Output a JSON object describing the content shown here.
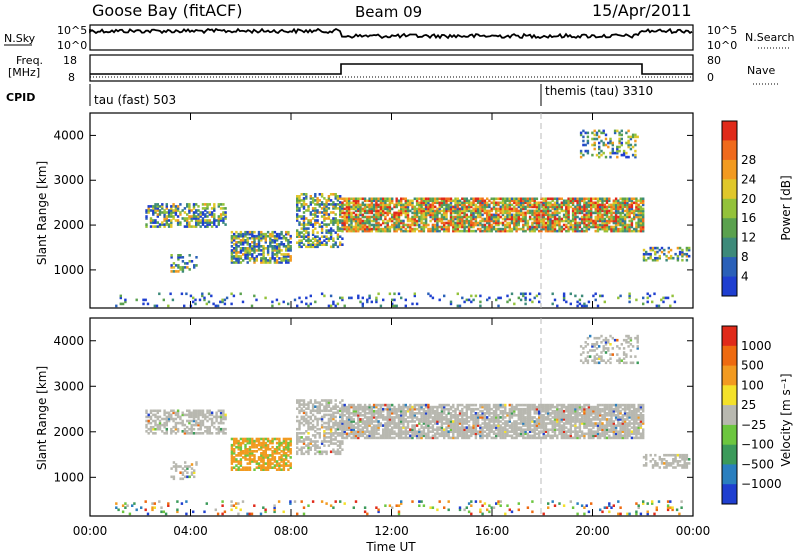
{
  "header": {
    "station": "Goose Bay (fitACF)",
    "beam": "Beam 09",
    "date": "15/Apr/2011"
  },
  "top_panels": {
    "nsky_label": "N.Sky",
    "nsky_tick_hi": "10^5",
    "nsky_tick_lo": "10^0",
    "nsearch_label": "N.Search",
    "nsearch_tick_hi": "10^5",
    "nsearch_tick_lo": "10^0",
    "freq_label_1": "Freq.",
    "freq_label_2": "[MHz]",
    "freq_tick_hi": "18",
    "freq_tick_lo": "8",
    "nave_label": "Nave",
    "nave_tick_hi": "80",
    "nave_tick_lo": "0",
    "cpid_label": "CPID",
    "cpid_1": "tau (fast) 503",
    "cpid_2": "themis (tau) 3310"
  },
  "chart_data": [
    {
      "type": "heatmap",
      "name": "power",
      "xlabel": "",
      "ylabel": "Slant Range [km]",
      "y_ticks": [
        "1000",
        "2000",
        "3000",
        "4000"
      ],
      "ylim": [
        150,
        4500
      ],
      "colorbar_label": "Power [dB]",
      "colorbar_ticks": [
        "4",
        "8",
        "12",
        "16",
        "20",
        "24",
        "28"
      ],
      "colors": [
        "#1f3fd0",
        "#2a60b8",
        "#3d8a7a",
        "#5aa14e",
        "#93c23a",
        "#e0c72a",
        "#f29a20",
        "#ef6a1c",
        "#e02a1a"
      ]
    },
    {
      "type": "heatmap",
      "name": "velocity",
      "xlabel": "Time UT",
      "ylabel": "Slant Range [km]",
      "x_ticks": [
        "00:00",
        "04:00",
        "08:00",
        "12:00",
        "16:00",
        "20:00",
        "00:00"
      ],
      "y_ticks": [
        "1000",
        "2000",
        "3000",
        "4000"
      ],
      "ylim": [
        150,
        4500
      ],
      "colorbar_label": "Velocity [m s⁻¹]",
      "colorbar_ticks": [
        "1000",
        "500",
        "100",
        "25",
        "−25",
        "−100",
        "−500",
        "−1000"
      ],
      "colors": [
        "#1f3fd0",
        "#2a7fbf",
        "#3b9a5a",
        "#6cc63f",
        "#b8b8b0",
        "#f4e12a",
        "#f29a20",
        "#ee6a10",
        "#e02a1a"
      ]
    }
  ]
}
